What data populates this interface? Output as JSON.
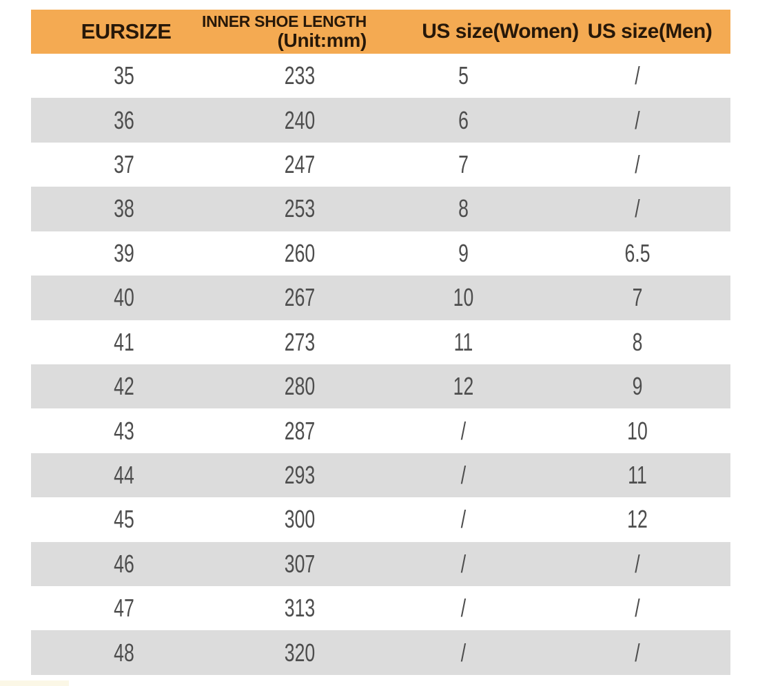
{
  "table": {
    "headers": {
      "eursize": "EURSIZE",
      "inner_length_line1": "INNER SHOE LENGTH",
      "inner_length_line2": "(Unit:mm)",
      "us_women": "US size(Women)",
      "us_men": "US size(Men)"
    },
    "rows": [
      {
        "eur": "35",
        "length": "233",
        "us_women": "5",
        "us_men": "/"
      },
      {
        "eur": "36",
        "length": "240",
        "us_women": "6",
        "us_men": "/"
      },
      {
        "eur": "37",
        "length": "247",
        "us_women": "7",
        "us_men": "/"
      },
      {
        "eur": "38",
        "length": "253",
        "us_women": "8",
        "us_men": "/"
      },
      {
        "eur": "39",
        "length": "260",
        "us_women": "9",
        "us_men": "6.5"
      },
      {
        "eur": "40",
        "length": "267",
        "us_women": "10",
        "us_men": "7"
      },
      {
        "eur": "41",
        "length": "273",
        "us_women": "11",
        "us_men": "8"
      },
      {
        "eur": "42",
        "length": "280",
        "us_women": "12",
        "us_men": "9"
      },
      {
        "eur": "43",
        "length": "287",
        "us_women": "/",
        "us_men": "10"
      },
      {
        "eur": "44",
        "length": "293",
        "us_women": "/",
        "us_men": "11"
      },
      {
        "eur": "45",
        "length": "300",
        "us_women": "/",
        "us_men": "12"
      },
      {
        "eur": "46",
        "length": "307",
        "us_women": "/",
        "us_men": "/"
      },
      {
        "eur": "47",
        "length": "313",
        "us_women": "/",
        "us_men": "/"
      },
      {
        "eur": "48",
        "length": "320",
        "us_women": "/",
        "us_men": "/"
      }
    ]
  },
  "colors": {
    "header_bg": "#F4AA52",
    "header_text": "#271809",
    "row_alt": "#DCDCDC",
    "cell_text": "#4D4D4D",
    "corner": "#FBF7E6"
  },
  "chart_data": {
    "type": "table",
    "columns": [
      "EURSIZE",
      "INNER SHOE LENGTH (Unit:mm)",
      "US size(Women)",
      "US size(Men)"
    ],
    "rows": [
      [
        "35",
        "233",
        "5",
        "/"
      ],
      [
        "36",
        "240",
        "6",
        "/"
      ],
      [
        "37",
        "247",
        "7",
        "/"
      ],
      [
        "38",
        "253",
        "8",
        "/"
      ],
      [
        "39",
        "260",
        "9",
        "6.5"
      ],
      [
        "40",
        "267",
        "10",
        "7"
      ],
      [
        "41",
        "273",
        "11",
        "8"
      ],
      [
        "42",
        "280",
        "12",
        "9"
      ],
      [
        "43",
        "287",
        "/",
        "10"
      ],
      [
        "44",
        "293",
        "/",
        "11"
      ],
      [
        "45",
        "300",
        "/",
        "12"
      ],
      [
        "46",
        "307",
        "/",
        "/"
      ],
      [
        "47",
        "313",
        "/",
        "/"
      ],
      [
        "48",
        "320",
        "/",
        "/"
      ]
    ],
    "layout": {
      "header_bg": "#F4AA52",
      "alternating_rows": true,
      "first_data_row_bg": "white",
      "alt_row_bg": "#DCDCDC",
      "grid": false
    }
  }
}
